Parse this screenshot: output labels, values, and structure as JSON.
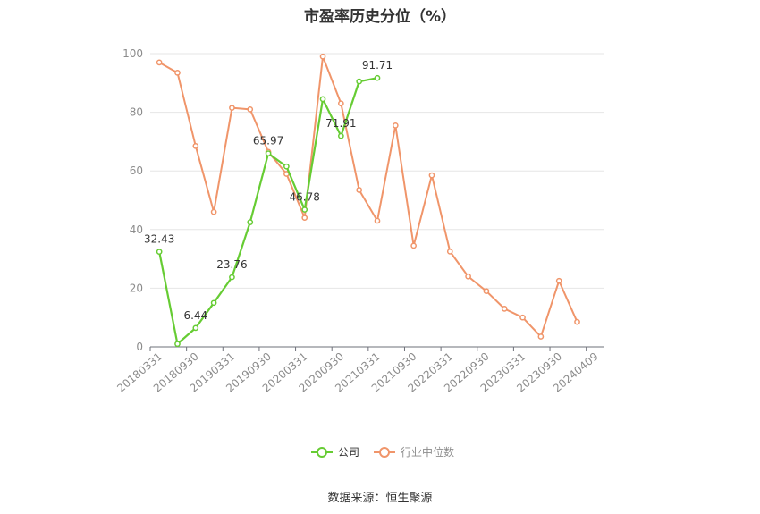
{
  "chart_data": {
    "type": "line",
    "title": "市盈率历史分位（%）",
    "xlabel": "",
    "ylabel": "",
    "ylim": [
      0,
      100
    ],
    "yticks": [
      0,
      20,
      40,
      60,
      80,
      100
    ],
    "grid": true,
    "legend_position": "bottom",
    "x": [
      "20180331",
      "20180630",
      "20180930",
      "20181231",
      "20190331",
      "20190630",
      "20190930",
      "20191231",
      "20200331",
      "20200630",
      "20200930",
      "20201231",
      "20210331",
      "20210630",
      "20210930",
      "20211231",
      "20220331",
      "20220630",
      "20220930",
      "20221231",
      "20230331",
      "20230630",
      "20230930",
      "20231231",
      "20240409"
    ],
    "x_tick_labels": [
      "20180331",
      "20180930",
      "20190331",
      "20190930",
      "20200331",
      "20200930",
      "20210331",
      "20210930",
      "20220331",
      "20220930",
      "20230331",
      "20230930",
      "20240409"
    ],
    "series": [
      {
        "name": "公司",
        "color": "#66cc33",
        "values": [
          32.43,
          1.0,
          6.44,
          15.0,
          23.76,
          42.5,
          65.97,
          61.5,
          46.78,
          84.5,
          71.91,
          90.5,
          91.71,
          null,
          null,
          null,
          null,
          null,
          null,
          null,
          null,
          null,
          null,
          null,
          null
        ],
        "labels": [
          {
            "index": 0,
            "text": "32.43"
          },
          {
            "index": 2,
            "text": "6.44"
          },
          {
            "index": 4,
            "text": "23.76"
          },
          {
            "index": 6,
            "text": "65.97"
          },
          {
            "index": 8,
            "text": "46.78"
          },
          {
            "index": 10,
            "text": "71.91"
          },
          {
            "index": 12,
            "text": "91.71"
          }
        ]
      },
      {
        "name": "行业中位数",
        "color": "#f0956a",
        "values": [
          97.0,
          93.5,
          68.5,
          46.0,
          81.5,
          81.0,
          66.5,
          59.0,
          44.0,
          99.0,
          83.0,
          53.5,
          43.0,
          75.5,
          34.5,
          58.5,
          32.5,
          24.0,
          19.0,
          13.0,
          10.0,
          3.5,
          22.5,
          8.5,
          null
        ]
      }
    ]
  },
  "source_text": "数据来源：恒生聚源"
}
